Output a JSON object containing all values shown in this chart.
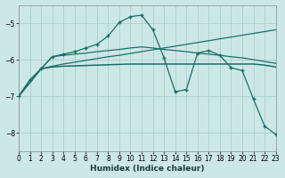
{
  "xlabel": "Humidex (Indice chaleur)",
  "bg_color": "#cce8e6",
  "grid_color": "#aad0ce",
  "line_color": "#1a6e65",
  "xlim": [
    0,
    23
  ],
  "ylim": [
    -8.5,
    -4.5
  ],
  "yticks": [
    -8,
    -7,
    -6,
    -5
  ],
  "xticks": [
    0,
    1,
    2,
    3,
    4,
    5,
    6,
    7,
    8,
    9,
    10,
    11,
    12,
    13,
    14,
    15,
    16,
    17,
    18,
    19,
    20,
    21,
    22,
    23
  ],
  "c1_x": [
    0,
    1,
    2,
    3,
    4,
    5,
    6,
    7,
    8,
    9,
    10,
    11,
    12,
    13,
    14,
    15,
    16,
    17,
    18,
    19,
    20,
    21,
    22,
    23
  ],
  "c1_y": [
    -7.0,
    -6.55,
    -6.25,
    -5.92,
    -5.85,
    -5.78,
    -5.68,
    -5.58,
    -5.35,
    -4.98,
    -4.82,
    -4.78,
    -5.18,
    -5.95,
    -6.88,
    -6.82,
    -5.82,
    -5.75,
    -5.88,
    -6.22,
    -6.3,
    -7.08,
    -7.82,
    -8.05
  ],
  "c2_x": [
    0,
    2,
    3,
    4,
    5,
    6,
    7,
    8,
    9,
    10,
    11,
    12,
    13,
    14,
    15,
    16,
    17,
    18,
    19,
    20,
    21,
    22,
    23
  ],
  "c2_y": [
    -7.0,
    -6.25,
    -6.2,
    -6.18,
    -6.17,
    -6.16,
    -6.15,
    -6.14,
    -6.13,
    -6.12,
    -6.12,
    -6.12,
    -6.12,
    -6.12,
    -6.12,
    -6.12,
    -6.12,
    -6.12,
    -6.12,
    -6.12,
    -6.12,
    -6.15,
    -6.2
  ],
  "c3_x": [
    0,
    2,
    3,
    4,
    5,
    6,
    7,
    8,
    9,
    10,
    11,
    12,
    13,
    14,
    15,
    16,
    17,
    18,
    19,
    20,
    21,
    22,
    23
  ],
  "c3_y": [
    -7.0,
    -6.25,
    -6.18,
    -6.12,
    -6.07,
    -6.02,
    -5.97,
    -5.92,
    -5.88,
    -5.83,
    -5.78,
    -5.73,
    -5.68,
    -5.63,
    -5.58,
    -5.53,
    -5.48,
    -5.43,
    -5.38,
    -5.33,
    -5.28,
    -5.23,
    -5.18
  ],
  "c4_x": [
    0,
    2,
    3,
    4,
    5,
    6,
    7,
    8,
    9,
    10,
    11,
    12,
    13,
    14,
    15,
    16,
    17,
    18,
    19,
    20,
    21,
    22,
    23
  ],
  "c4_y": [
    -7.0,
    -6.25,
    -5.92,
    -5.88,
    -5.85,
    -5.82,
    -5.78,
    -5.75,
    -5.72,
    -5.68,
    -5.65,
    -5.68,
    -5.72,
    -5.75,
    -5.78,
    -5.82,
    -5.85,
    -5.88,
    -5.92,
    -5.95,
    -6.0,
    -6.05,
    -6.1
  ]
}
